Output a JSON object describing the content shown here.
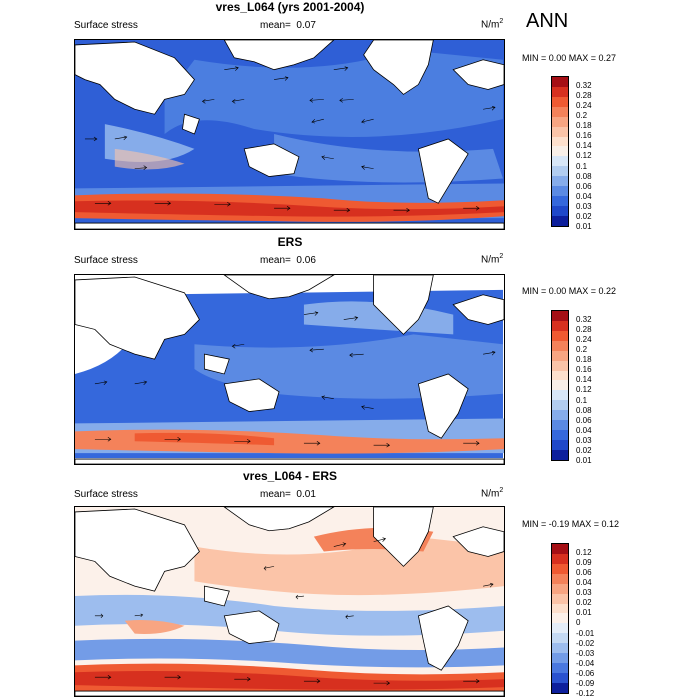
{
  "season": "ANN",
  "panels": [
    {
      "title": "vres_L064 (yrs 2001-2004)",
      "left_label": "Surface stress",
      "mean_label": "mean=",
      "mean_value": "0.07",
      "units": "N/m",
      "units_sup": "2",
      "minmax": "MIN =   0.00 MAX =   0.27",
      "levels": [
        "0.32",
        "0.28",
        "0.24",
        "0.2",
        "0.18",
        "0.16",
        "0.14",
        "0.12",
        "0.1",
        "0.08",
        "0.06",
        "0.04",
        "0.03",
        "0.02",
        "0.01"
      ],
      "colors": [
        "#a50f15",
        "#d7301f",
        "#ef5a32",
        "#f4825a",
        "#f8a582",
        "#fbc4a8",
        "#fde0cd",
        "#f8efe8",
        "#d7e6f7",
        "#b2cdf0",
        "#86acea",
        "#5b8ae3",
        "#3568dc",
        "#1f48c9",
        "#0d1f9c"
      ]
    },
    {
      "title": "ERS",
      "left_label": "Surface stress",
      "mean_label": "mean=",
      "mean_value": "0.06",
      "units": "N/m",
      "units_sup": "2",
      "minmax": "MIN =   0.00 MAX =   0.22",
      "levels": [
        "0.32",
        "0.28",
        "0.24",
        "0.2",
        "0.18",
        "0.16",
        "0.14",
        "0.12",
        "0.1",
        "0.08",
        "0.06",
        "0.04",
        "0.03",
        "0.02",
        "0.01"
      ],
      "colors": [
        "#a50f15",
        "#d7301f",
        "#ef5a32",
        "#f4825a",
        "#f8a582",
        "#fbc4a8",
        "#fde0cd",
        "#f8efe8",
        "#d7e6f7",
        "#b2cdf0",
        "#86acea",
        "#5b8ae3",
        "#3568dc",
        "#1f48c9",
        "#0d1f9c"
      ]
    },
    {
      "title": "vres_L064 - ERS",
      "left_label": "Surface stress",
      "mean_label": "mean=",
      "mean_value": "0.01",
      "units": "N/m",
      "units_sup": "2",
      "minmax": "MIN =  -0.19 MAX =   0.12",
      "levels": [
        "0.12",
        "0.09",
        "0.06",
        "0.04",
        "0.03",
        "0.02",
        "0.01",
        "0",
        "-0.01",
        "-0.02",
        "-0.03",
        "-0.04",
        "-0.06",
        "-0.09",
        "-0.12"
      ],
      "colors": [
        "#a50f15",
        "#d7301f",
        "#ef5a32",
        "#f4825a",
        "#f8a582",
        "#fbc4a8",
        "#fde0cd",
        "#fcf1ea",
        "#e4edf8",
        "#c4d9f3",
        "#9dbdee",
        "#739ce7",
        "#4a78df",
        "#2a52cf",
        "#0d1f9c"
      ]
    }
  ]
}
